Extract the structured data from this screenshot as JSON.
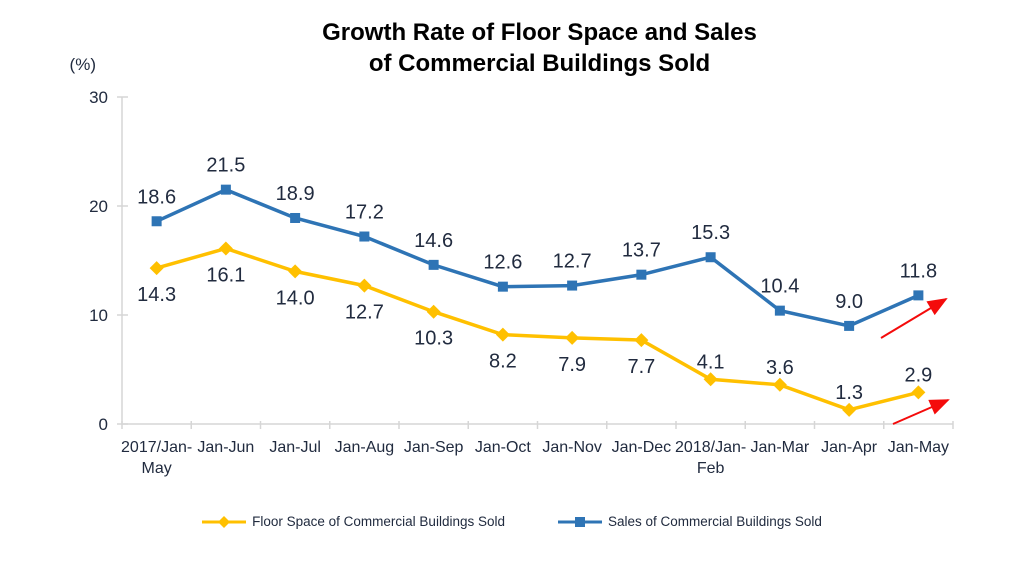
{
  "page": {
    "background": "#FFFFFF"
  },
  "chart_data": {
    "type": "line",
    "title": "Growth Rate of Floor Space and Sales of Commercial Buildings Sold",
    "title_lines": [
      "Growth Rate of Floor Space and Sales",
      "of Commercial Buildings Sold"
    ],
    "unit_label": "(%)",
    "xlabel": "",
    "ylabel": "(%)",
    "ylim": [
      0,
      30
    ],
    "yticks": [
      0,
      10,
      20,
      30
    ],
    "grid": false,
    "legend_position": "bottom",
    "categories": [
      "2017/Jan-\nMay",
      "Jan-Jun",
      "Jan-Jul",
      "Jan-Aug",
      "Jan-Sep",
      "Jan-Oct",
      "Jan-Nov",
      "Jan-Dec",
      "2018/Jan-\nFeb",
      "Jan-Mar",
      "Jan-Apr",
      "Jan-May"
    ],
    "series": [
      {
        "name": "Floor Space of Commercial Buildings Sold",
        "color": "#FFC000",
        "marker": "diamond",
        "values": [
          14.3,
          16.1,
          14.0,
          12.7,
          10.3,
          8.2,
          7.9,
          7.7,
          4.1,
          3.6,
          1.3,
          2.9
        ],
        "label_side": [
          "below",
          "below",
          "below",
          "below",
          "below",
          "below",
          "below",
          "below",
          "above",
          "above",
          "above",
          "above"
        ]
      },
      {
        "name": "Sales of Commercial Buildings Sold",
        "color": "#2E74B5",
        "marker": "square",
        "values": [
          18.6,
          21.5,
          18.9,
          17.2,
          14.6,
          12.6,
          12.7,
          13.7,
          15.3,
          10.4,
          9.0,
          11.8
        ],
        "label_side": [
          "above",
          "above",
          "above",
          "above",
          "above",
          "above",
          "above",
          "above",
          "above",
          "above",
          "above",
          "above"
        ]
      }
    ],
    "annotations": [
      {
        "type": "arrow",
        "color": "#F40B0B",
        "from": [
          881,
          338
        ],
        "to": [
          946,
          299
        ]
      },
      {
        "type": "arrow",
        "color": "#F40B0B",
        "from": [
          893,
          424
        ],
        "to": [
          948,
          400
        ]
      }
    ],
    "colors": {
      "axis": "#D6D6D6",
      "text": "#212B3F",
      "arrow": "#F40B0B"
    }
  }
}
